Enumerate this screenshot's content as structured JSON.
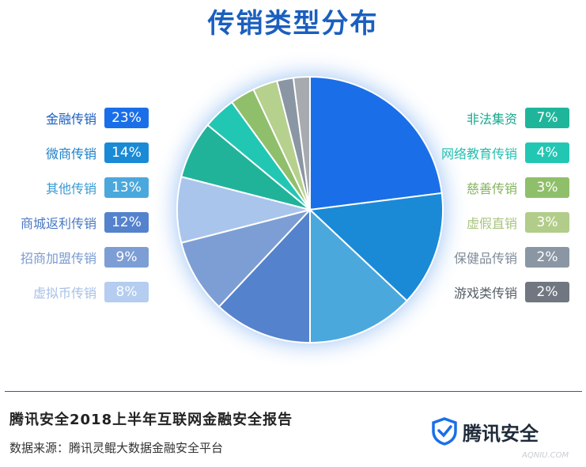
{
  "title": "传销类型分布",
  "report_title": "腾讯安全2018上半年互联网金融安全报告",
  "source": "数据来源：腾讯灵鲲大数据金融安全平台",
  "brand": {
    "name": "腾讯安全",
    "icon": "shield-check-icon"
  },
  "watermark": "AQNIU.COM",
  "chart_data": {
    "type": "pie",
    "title": "传销类型分布",
    "slices": [
      {
        "label": "金融传销",
        "value": 23,
        "display": "23%",
        "color": "#1a6fe8"
      },
      {
        "label": "微商传销",
        "value": 14,
        "display": "14%",
        "color": "#1a8ad6"
      },
      {
        "label": "其他传销",
        "value": 13,
        "display": "13%",
        "color": "#4aa8dc"
      },
      {
        "label": "商城返利传销",
        "value": 12,
        "display": "12%",
        "color": "#5582cc"
      },
      {
        "label": "招商加盟传销",
        "value": 9,
        "display": "9%",
        "color": "#7c9ed4"
      },
      {
        "label": "虚拟币传销",
        "value": 8,
        "display": "8%",
        "color": "#a9c5ec"
      },
      {
        "label": "非法集资",
        "value": 7,
        "display": "7%",
        "color": "#20b39a"
      },
      {
        "label": "网络教育传销",
        "value": 4,
        "display": "4%",
        "color": "#22c7b4"
      },
      {
        "label": "慈善传销",
        "value": 3,
        "display": "3%",
        "color": "#8fbf6a"
      },
      {
        "label": "虚假直销",
        "value": 3,
        "display": "3%",
        "color": "#b6d08e"
      },
      {
        "label": "保健品传销",
        "value": 2,
        "display": "2%",
        "color": "#8a96a3"
      },
      {
        "label": "游戏类传销",
        "value": 2,
        "display": "2%",
        "color": "#a7aaae"
      }
    ],
    "legend_left": [
      {
        "label": "金融传销",
        "value": "23%",
        "name_color": "#1a5fbf",
        "box_color": "#1a6fe8"
      },
      {
        "label": "微商传销",
        "value": "14%",
        "name_color": "#1a7fc8",
        "box_color": "#1a8ad6"
      },
      {
        "label": "其他传销",
        "value": "13%",
        "name_color": "#3a9ad4",
        "box_color": "#4aa8dc"
      },
      {
        "label": "商城返利传销",
        "value": "12%",
        "name_color": "#4a78c4",
        "box_color": "#5582cc"
      },
      {
        "label": "招商加盟传销",
        "value": "9%",
        "name_color": "#7b9bd0",
        "box_color": "#7c9ed4"
      },
      {
        "label": "虚拟币传销",
        "value": "8%",
        "name_color": "#a6c0e6",
        "box_color": "#b4cdf0"
      }
    ],
    "legend_right": [
      {
        "label": "非法集资",
        "value": "7%",
        "name_color": "#18a88f",
        "box_color": "#1fb59b"
      },
      {
        "label": "网络教育传销",
        "value": "4%",
        "name_color": "#22bfae",
        "box_color": "#22c7b4"
      },
      {
        "label": "慈善传销",
        "value": "3%",
        "name_color": "#86b45f",
        "box_color": "#8fbf6a"
      },
      {
        "label": "虚假直销",
        "value": "3%",
        "name_color": "#a9c47f",
        "box_color": "#b2cc8a"
      },
      {
        "label": "保健品传销",
        "value": "2%",
        "name_color": "#7f8b98",
        "box_color": "#8a96a3"
      },
      {
        "label": "游戏类传销",
        "value": "2%",
        "name_color": "#555d66",
        "box_color": "#707780"
      }
    ]
  }
}
